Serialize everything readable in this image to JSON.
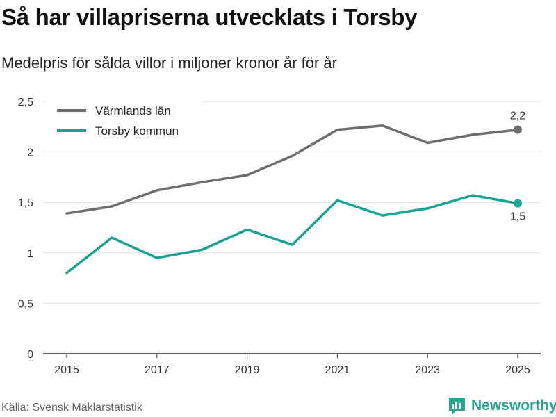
{
  "title": "Så har villapriserna utvecklats i Torsby",
  "subtitle": "Medelpris för sålda villor i miljoner kronor år för år",
  "source": "Källa: Svensk Mäklarstatistik",
  "brand": {
    "name": "Newsworthy",
    "icon": "newsworthy-logo-icon",
    "color": "#2aa38f"
  },
  "chart_data": {
    "type": "line",
    "title": "Så har villapriserna utvecklats i Torsby",
    "xlabel": "",
    "ylabel": "",
    "x": [
      2015,
      2016,
      2017,
      2018,
      2019,
      2020,
      2021,
      2022,
      2023,
      2024,
      2025
    ],
    "x_tick_labels": [
      "2015",
      "2017",
      "2019",
      "2021",
      "2023",
      "2025"
    ],
    "x_tick_values": [
      2015,
      2017,
      2019,
      2021,
      2023,
      2025
    ],
    "y_tick_values": [
      0,
      0.5,
      1,
      1.5,
      2,
      2.5
    ],
    "y_tick_labels": [
      "0",
      "0,5",
      "1",
      "1,5",
      "2",
      "2,5"
    ],
    "ylim": [
      0,
      2.5
    ],
    "grid": true,
    "legend": "top-left",
    "series": [
      {
        "name": "Värmlands län",
        "color": "#6e6e6e",
        "values": [
          1.39,
          1.46,
          1.62,
          1.7,
          1.77,
          1.96,
          2.22,
          2.26,
          2.09,
          2.17,
          2.22
        ],
        "end_label": "2,2"
      },
      {
        "name": "Torsby kommun",
        "color": "#1aa394",
        "values": [
          0.8,
          1.15,
          0.95,
          1.03,
          1.23,
          1.08,
          1.52,
          1.37,
          1.44,
          1.57,
          1.49
        ],
        "end_label": "1,5"
      }
    ]
  }
}
